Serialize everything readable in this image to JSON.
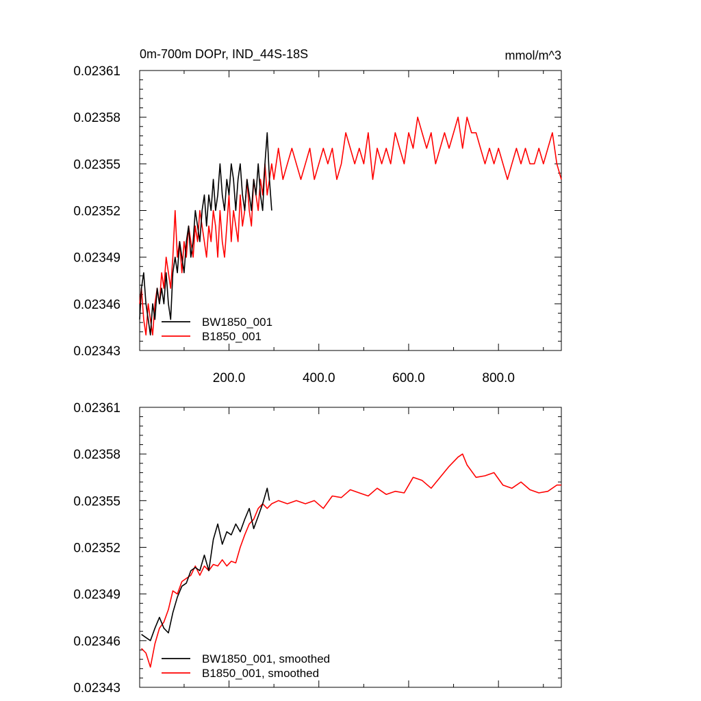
{
  "chart_data": [
    {
      "type": "line",
      "title": "0m-700m DOPr, IND_44S-18S",
      "units": "mmol/m^3",
      "xlabel": "",
      "ylabel": "",
      "xlim": [
        1,
        940
      ],
      "ylim": [
        0.02343,
        0.02361
      ],
      "x_ticks": [
        200,
        400,
        600,
        800
      ],
      "x_tick_labels": [
        "200.0",
        "400.0",
        "600.0",
        "800.0"
      ],
      "y_ticks": [
        0.02343,
        0.02346,
        0.02349,
        0.02352,
        0.02355,
        0.02358,
        0.02361
      ],
      "y_tick_labels": [
        "0.02343",
        "0.02346",
        "0.02349",
        "0.02352",
        "0.02355",
        "0.02358",
        "0.02361"
      ],
      "legend": "bottom-left",
      "series": [
        {
          "name": "BW1850_001",
          "color": "#000000",
          "x": [
            1,
            5,
            10,
            15,
            20,
            25,
            30,
            35,
            40,
            45,
            50,
            55,
            60,
            65,
            70,
            75,
            80,
            85,
            90,
            95,
            100,
            105,
            110,
            115,
            120,
            125,
            130,
            135,
            140,
            145,
            150,
            155,
            160,
            165,
            170,
            175,
            180,
            185,
            190,
            195,
            200,
            205,
            210,
            215,
            220,
            225,
            230,
            235,
            240,
            245,
            250,
            255,
            260,
            265,
            270,
            275,
            280,
            285,
            290,
            295
          ],
          "values": [
            0.02345,
            0.02347,
            0.02348,
            0.02346,
            0.02345,
            0.02344,
            0.02346,
            0.02345,
            0.02347,
            0.02346,
            0.02347,
            0.02346,
            0.02348,
            0.02346,
            0.02345,
            0.02348,
            0.02349,
            0.02348,
            0.0235,
            0.02349,
            0.02348,
            0.0235,
            0.02351,
            0.02349,
            0.0235,
            0.02352,
            0.02351,
            0.0235,
            0.02352,
            0.02353,
            0.02351,
            0.02353,
            0.02352,
            0.02354,
            0.02352,
            0.02353,
            0.02355,
            0.02353,
            0.02352,
            0.02354,
            0.02353,
            0.02355,
            0.02354,
            0.02352,
            0.02354,
            0.02355,
            0.02353,
            0.02352,
            0.02354,
            0.02353,
            0.02352,
            0.02354,
            0.02353,
            0.02355,
            0.02353,
            0.02352,
            0.02355,
            0.02357,
            0.02354,
            0.02352
          ]
        },
        {
          "name": "B1850_001",
          "color": "#ff0000",
          "x": [
            1,
            5,
            10,
            15,
            20,
            25,
            30,
            35,
            40,
            45,
            50,
            55,
            60,
            65,
            70,
            75,
            80,
            85,
            90,
            95,
            100,
            105,
            110,
            115,
            120,
            125,
            130,
            135,
            140,
            145,
            150,
            155,
            160,
            165,
            170,
            175,
            180,
            185,
            190,
            195,
            200,
            205,
            210,
            215,
            220,
            225,
            230,
            235,
            240,
            245,
            250,
            255,
            260,
            265,
            270,
            275,
            280,
            285,
            290,
            295,
            300,
            310,
            320,
            330,
            340,
            350,
            360,
            370,
            380,
            390,
            400,
            410,
            420,
            430,
            440,
            450,
            460,
            470,
            480,
            490,
            500,
            510,
            520,
            530,
            540,
            550,
            560,
            570,
            580,
            590,
            600,
            610,
            620,
            630,
            640,
            650,
            660,
            670,
            680,
            690,
            700,
            710,
            720,
            730,
            740,
            750,
            760,
            770,
            780,
            790,
            800,
            810,
            820,
            830,
            840,
            850,
            860,
            870,
            880,
            890,
            900,
            910,
            920,
            930,
            940
          ],
          "values": [
            0.02346,
            0.02347,
            0.02345,
            0.02344,
            0.02346,
            0.02345,
            0.02344,
            0.02346,
            0.02347,
            0.02346,
            0.02348,
            0.02347,
            0.02349,
            0.02348,
            0.02347,
            0.02349,
            0.02352,
            0.02349,
            0.0235,
            0.02348,
            0.0235,
            0.02349,
            0.02351,
            0.0235,
            0.02349,
            0.02351,
            0.0235,
            0.02352,
            0.02351,
            0.0235,
            0.02349,
            0.02351,
            0.0235,
            0.02352,
            0.02351,
            0.02349,
            0.02352,
            0.0235,
            0.02349,
            0.02351,
            0.02353,
            0.0235,
            0.02352,
            0.02351,
            0.0235,
            0.02353,
            0.02351,
            0.02352,
            0.02354,
            0.02352,
            0.02351,
            0.02354,
            0.02353,
            0.02352,
            0.02354,
            0.02353,
            0.02355,
            0.02353,
            0.02354,
            0.02355,
            0.02354,
            0.02356,
            0.02354,
            0.02355,
            0.02356,
            0.02355,
            0.02354,
            0.02355,
            0.02356,
            0.02354,
            0.02355,
            0.02356,
            0.02355,
            0.02356,
            0.02354,
            0.02355,
            0.02357,
            0.02356,
            0.02355,
            0.02356,
            0.02355,
            0.02357,
            0.02354,
            0.02356,
            0.02355,
            0.02356,
            0.02355,
            0.02357,
            0.02356,
            0.02355,
            0.02357,
            0.02356,
            0.02358,
            0.02357,
            0.02356,
            0.02357,
            0.02355,
            0.02356,
            0.02357,
            0.02356,
            0.02357,
            0.02358,
            0.02356,
            0.02358,
            0.02357,
            0.02357,
            0.02356,
            0.02355,
            0.02356,
            0.02355,
            0.02356,
            0.02355,
            0.02354,
            0.02355,
            0.02356,
            0.02355,
            0.02356,
            0.02355,
            0.02355,
            0.02356,
            0.02355,
            0.02356,
            0.02357,
            0.02355,
            0.02354
          ]
        }
      ]
    },
    {
      "type": "line",
      "title": "",
      "xlabel": "",
      "ylabel": "",
      "xlim": [
        1,
        940
      ],
      "ylim": [
        0.02343,
        0.02361
      ],
      "x_ticks": [
        200,
        400,
        600,
        800
      ],
      "y_ticks": [
        0.02343,
        0.02346,
        0.02349,
        0.02352,
        0.02355,
        0.02358,
        0.02361
      ],
      "y_tick_labels": [
        "0.02343",
        "0.02346",
        "0.02349",
        "0.02352",
        "0.02355",
        "0.02358",
        "0.02361"
      ],
      "legend": "bottom-left",
      "series": [
        {
          "name": "BW1850_001, smoothed",
          "color": "#000000",
          "x": [
            5,
            15,
            25,
            35,
            45,
            55,
            65,
            75,
            85,
            95,
            105,
            115,
            125,
            135,
            145,
            155,
            165,
            175,
            185,
            195,
            205,
            215,
            225,
            235,
            245,
            255,
            265,
            275,
            285,
            290
          ],
          "values": [
            0.023464,
            0.023462,
            0.02346,
            0.023468,
            0.023475,
            0.023468,
            0.023465,
            0.023478,
            0.023488,
            0.023495,
            0.023497,
            0.023505,
            0.023507,
            0.023505,
            0.023515,
            0.023505,
            0.023525,
            0.023535,
            0.023522,
            0.02353,
            0.023528,
            0.023535,
            0.02353,
            0.023538,
            0.023545,
            0.023532,
            0.02354,
            0.023548,
            0.023558,
            0.02355
          ]
        },
        {
          "name": "B1850_001, smoothed",
          "color": "#ff0000",
          "x": [
            5,
            15,
            25,
            35,
            45,
            55,
            65,
            75,
            85,
            95,
            105,
            115,
            125,
            135,
            145,
            155,
            165,
            175,
            185,
            195,
            205,
            215,
            225,
            235,
            245,
            255,
            265,
            275,
            285,
            295,
            310,
            330,
            350,
            370,
            390,
            410,
            430,
            450,
            470,
            490,
            510,
            530,
            550,
            570,
            590,
            610,
            630,
            650,
            670,
            690,
            710,
            720,
            730,
            750,
            770,
            790,
            810,
            830,
            850,
            870,
            890,
            910,
            930,
            940
          ],
          "values": [
            0.023455,
            0.023452,
            0.023443,
            0.023458,
            0.023468,
            0.023472,
            0.02348,
            0.023492,
            0.02349,
            0.023498,
            0.0235,
            0.023502,
            0.023508,
            0.023502,
            0.023508,
            0.023505,
            0.023509,
            0.023508,
            0.023512,
            0.023508,
            0.023511,
            0.02351,
            0.02352,
            0.023528,
            0.023535,
            0.023538,
            0.023545,
            0.023548,
            0.023545,
            0.023548,
            0.02355,
            0.023548,
            0.02355,
            0.023548,
            0.02355,
            0.023545,
            0.023553,
            0.023552,
            0.023557,
            0.023555,
            0.023553,
            0.023558,
            0.023554,
            0.023556,
            0.023555,
            0.023565,
            0.023563,
            0.023558,
            0.023565,
            0.023572,
            0.023578,
            0.02358,
            0.023573,
            0.023565,
            0.023566,
            0.023568,
            0.02356,
            0.023558,
            0.023562,
            0.023557,
            0.023555,
            0.023556,
            0.02356,
            0.02356
          ]
        }
      ]
    }
  ]
}
